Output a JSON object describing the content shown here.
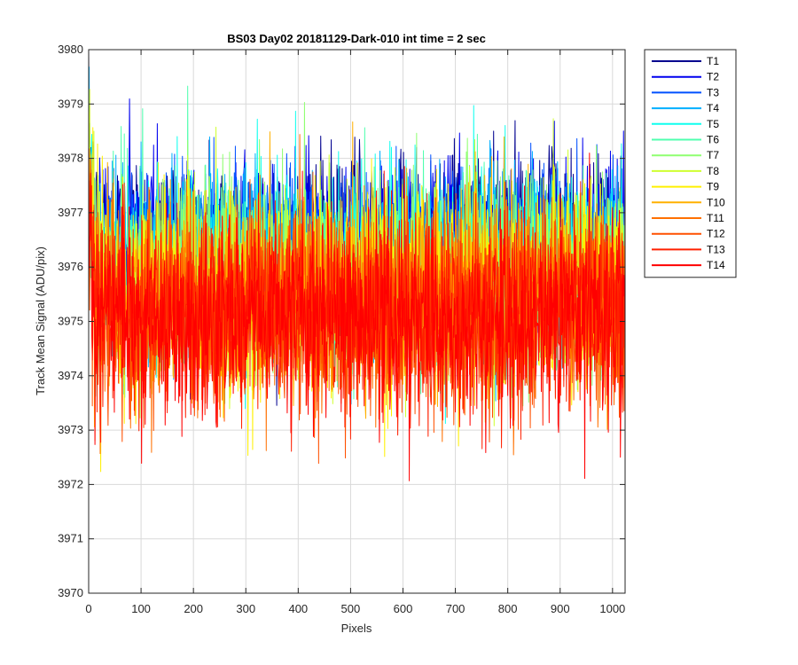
{
  "chart_data": {
    "type": "line",
    "title": "BS03 Day02 20181129-Dark-010 int time = 2 sec",
    "xlabel": "Pixels",
    "ylabel": "Track Mean Signal (ADU/pix)",
    "xlim": [
      0,
      1024
    ],
    "ylim": [
      3970,
      3980
    ],
    "xticks": [
      0,
      100,
      200,
      300,
      400,
      500,
      600,
      700,
      800,
      900,
      1000
    ],
    "yticks": [
      3970,
      3971,
      3972,
      3973,
      3974,
      3975,
      3976,
      3977,
      3978,
      3979,
      3980
    ],
    "grid": true,
    "legend_position": "outside-top-right",
    "series": [
      {
        "name": "T1",
        "color": "#00008F",
        "mean": 3976.6,
        "spread": 0.75
      },
      {
        "name": "T2",
        "color": "#0000EF",
        "mean": 3976.5,
        "spread": 0.75
      },
      {
        "name": "T3",
        "color": "#0050FF",
        "mean": 3976.3,
        "spread": 0.8
      },
      {
        "name": "T4",
        "color": "#00AFFF",
        "mean": 3976.1,
        "spread": 0.85
      },
      {
        "name": "T5",
        "color": "#0FFFEF",
        "mean": 3976.0,
        "spread": 0.85
      },
      {
        "name": "T6",
        "color": "#50FFAF",
        "mean": 3975.9,
        "spread": 0.85
      },
      {
        "name": "T7",
        "color": "#8FFF70",
        "mean": 3975.8,
        "spread": 0.85
      },
      {
        "name": "T8",
        "color": "#CFFF30",
        "mean": 3975.7,
        "spread": 0.9
      },
      {
        "name": "T9",
        "color": "#FFF000",
        "mean": 3975.6,
        "spread": 0.9
      },
      {
        "name": "T10",
        "color": "#FFB000",
        "mean": 3975.5,
        "spread": 0.9
      },
      {
        "name": "T11",
        "color": "#FF7000",
        "mean": 3975.3,
        "spread": 0.9
      },
      {
        "name": "T12",
        "color": "#FF5000",
        "mean": 3975.2,
        "spread": 0.9
      },
      {
        "name": "T13",
        "color": "#FF2000",
        "mean": 3975.1,
        "spread": 0.9
      },
      {
        "name": "T14",
        "color": "#FF0000",
        "mean": 3975.0,
        "spread": 0.9
      }
    ]
  }
}
